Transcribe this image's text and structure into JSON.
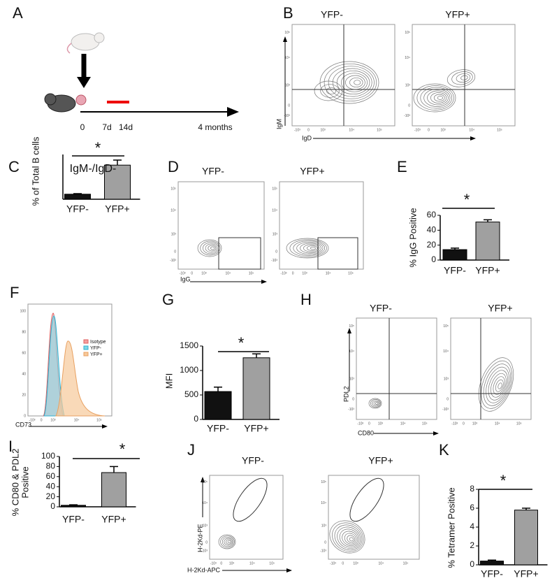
{
  "panel_labels": [
    "A",
    "B",
    "C",
    "D",
    "E",
    "F",
    "G",
    "H",
    "I",
    "J",
    "K"
  ],
  "timeline": {
    "labels": [
      "0",
      "7d",
      "14d",
      "4 months"
    ]
  },
  "flow_titles": [
    "YFP-",
    "YFP+"
  ],
  "flow_axes": {
    "B": [
      "IgM",
      "IgD"
    ],
    "D": [
      "IgG"
    ],
    "F": [
      "CD73"
    ],
    "H": [
      "PDL2",
      "CD80"
    ],
    "J": [
      "H-2Kd-PE",
      "H-2Kd-APC"
    ]
  },
  "flow_ticks": [
    "-10³",
    "0",
    "10³",
    "10⁴",
    "10⁵"
  ],
  "histogram": {
    "yticks": [
      "0",
      "20",
      "40",
      "60",
      "80",
      "100"
    ],
    "legend": [
      "Isotype",
      "YFP-",
      "YFP+"
    ]
  },
  "chart_data": [
    {
      "type": "bar",
      "title": "IgM-/IgD-",
      "ylabel": [
        "% of Total B cells"
      ],
      "categories": [
        "YFP-",
        "YFP+"
      ],
      "values": [
        9,
        61
      ],
      "errors": [
        1,
        9
      ],
      "colors": [
        "#111111",
        "#a0a0a0"
      ],
      "ylim": [
        0,
        80
      ],
      "annotation": "*"
    },
    {
      "type": "bar",
      "ylabel": [
        "% IgG Positive"
      ],
      "categories": [
        "YFP-",
        "YFP+"
      ],
      "values": [
        14,
        51
      ],
      "errors": [
        2,
        3
      ],
      "colors": [
        "#111111",
        "#a0a0a0"
      ],
      "ylim": [
        0,
        60
      ],
      "yticks": [
        0,
        20,
        40,
        60
      ],
      "annotation": "*"
    },
    {
      "type": "bar",
      "ylabel": [
        "MFI"
      ],
      "categories": [
        "YFP-",
        "YFP+"
      ],
      "values": [
        570,
        1260
      ],
      "errors": [
        90,
        80
      ],
      "colors": [
        "#111111",
        "#a0a0a0"
      ],
      "ylim": [
        0,
        1500
      ],
      "yticks": [
        0,
        500,
        1000,
        1500
      ],
      "annotation": "*"
    },
    {
      "type": "bar",
      "ylabel": [
        "% CD80 & PDL2",
        "Positive"
      ],
      "categories": [
        "YFP-",
        "YFP+"
      ],
      "values": [
        3,
        68
      ],
      "errors": [
        1,
        12
      ],
      "colors": [
        "#111111",
        "#a0a0a0"
      ],
      "ylim": [
        0,
        100
      ],
      "yticks": [
        0,
        20,
        40,
        60,
        80,
        100
      ],
      "annotation": "*"
    },
    {
      "type": "bar",
      "ylabel": [
        "% Tetramer Positive"
      ],
      "categories": [
        "YFP-",
        "YFP+"
      ],
      "values": [
        0.4,
        5.8
      ],
      "errors": [
        0.1,
        0.2
      ],
      "colors": [
        "#111111",
        "#a0a0a0"
      ],
      "ylim": [
        0,
        8
      ],
      "yticks": [
        0,
        2,
        4,
        6,
        8
      ],
      "annotation": "*"
    }
  ]
}
